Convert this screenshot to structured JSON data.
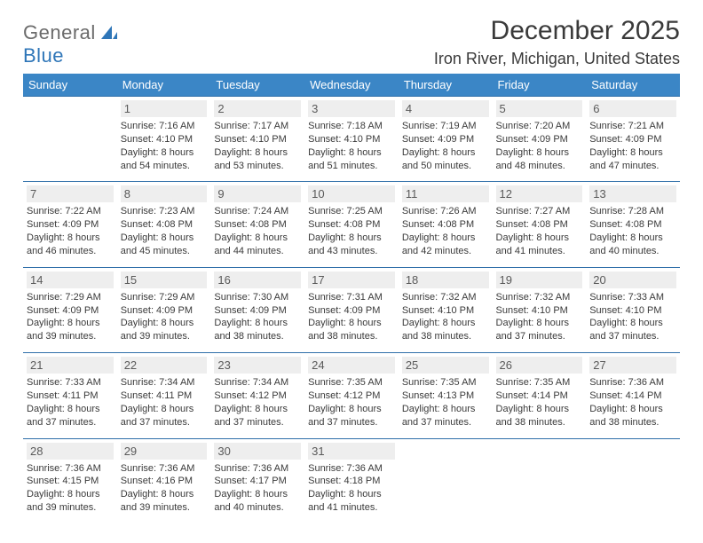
{
  "logo": {
    "part1": "General",
    "part2": "Blue"
  },
  "title": "December 2025",
  "location": "Iron River, Michigan, United States",
  "colors": {
    "header_bg": "#3b86c6",
    "header_text": "#ffffff",
    "row_border": "#2f6fa9",
    "daynum_bg": "#eeeeee",
    "text": "#3a3a3a",
    "logo_gray": "#6b6b6b",
    "logo_blue": "#2f76b8",
    "page_bg": "#ffffff"
  },
  "typography": {
    "title_fontsize": 30,
    "location_fontsize": 18,
    "header_fontsize": 13,
    "daynum_fontsize": 13,
    "body_fontsize": 11
  },
  "weekdays": [
    "Sunday",
    "Monday",
    "Tuesday",
    "Wednesday",
    "Thursday",
    "Friday",
    "Saturday"
  ],
  "layout": {
    "start_offset": 1,
    "columns": 7,
    "rows": 5
  },
  "days": [
    {
      "n": "1",
      "sunrise": "7:16 AM",
      "sunset": "4:10 PM",
      "daylight": "8 hours and 54 minutes."
    },
    {
      "n": "2",
      "sunrise": "7:17 AM",
      "sunset": "4:10 PM",
      "daylight": "8 hours and 53 minutes."
    },
    {
      "n": "3",
      "sunrise": "7:18 AM",
      "sunset": "4:10 PM",
      "daylight": "8 hours and 51 minutes."
    },
    {
      "n": "4",
      "sunrise": "7:19 AM",
      "sunset": "4:09 PM",
      "daylight": "8 hours and 50 minutes."
    },
    {
      "n": "5",
      "sunrise": "7:20 AM",
      "sunset": "4:09 PM",
      "daylight": "8 hours and 48 minutes."
    },
    {
      "n": "6",
      "sunrise": "7:21 AM",
      "sunset": "4:09 PM",
      "daylight": "8 hours and 47 minutes."
    },
    {
      "n": "7",
      "sunrise": "7:22 AM",
      "sunset": "4:09 PM",
      "daylight": "8 hours and 46 minutes."
    },
    {
      "n": "8",
      "sunrise": "7:23 AM",
      "sunset": "4:08 PM",
      "daylight": "8 hours and 45 minutes."
    },
    {
      "n": "9",
      "sunrise": "7:24 AM",
      "sunset": "4:08 PM",
      "daylight": "8 hours and 44 minutes."
    },
    {
      "n": "10",
      "sunrise": "7:25 AM",
      "sunset": "4:08 PM",
      "daylight": "8 hours and 43 minutes."
    },
    {
      "n": "11",
      "sunrise": "7:26 AM",
      "sunset": "4:08 PM",
      "daylight": "8 hours and 42 minutes."
    },
    {
      "n": "12",
      "sunrise": "7:27 AM",
      "sunset": "4:08 PM",
      "daylight": "8 hours and 41 minutes."
    },
    {
      "n": "13",
      "sunrise": "7:28 AM",
      "sunset": "4:08 PM",
      "daylight": "8 hours and 40 minutes."
    },
    {
      "n": "14",
      "sunrise": "7:29 AM",
      "sunset": "4:09 PM",
      "daylight": "8 hours and 39 minutes."
    },
    {
      "n": "15",
      "sunrise": "7:29 AM",
      "sunset": "4:09 PM",
      "daylight": "8 hours and 39 minutes."
    },
    {
      "n": "16",
      "sunrise": "7:30 AM",
      "sunset": "4:09 PM",
      "daylight": "8 hours and 38 minutes."
    },
    {
      "n": "17",
      "sunrise": "7:31 AM",
      "sunset": "4:09 PM",
      "daylight": "8 hours and 38 minutes."
    },
    {
      "n": "18",
      "sunrise": "7:32 AM",
      "sunset": "4:10 PM",
      "daylight": "8 hours and 38 minutes."
    },
    {
      "n": "19",
      "sunrise": "7:32 AM",
      "sunset": "4:10 PM",
      "daylight": "8 hours and 37 minutes."
    },
    {
      "n": "20",
      "sunrise": "7:33 AM",
      "sunset": "4:10 PM",
      "daylight": "8 hours and 37 minutes."
    },
    {
      "n": "21",
      "sunrise": "7:33 AM",
      "sunset": "4:11 PM",
      "daylight": "8 hours and 37 minutes."
    },
    {
      "n": "22",
      "sunrise": "7:34 AM",
      "sunset": "4:11 PM",
      "daylight": "8 hours and 37 minutes."
    },
    {
      "n": "23",
      "sunrise": "7:34 AM",
      "sunset": "4:12 PM",
      "daylight": "8 hours and 37 minutes."
    },
    {
      "n": "24",
      "sunrise": "7:35 AM",
      "sunset": "4:12 PM",
      "daylight": "8 hours and 37 minutes."
    },
    {
      "n": "25",
      "sunrise": "7:35 AM",
      "sunset": "4:13 PM",
      "daylight": "8 hours and 37 minutes."
    },
    {
      "n": "26",
      "sunrise": "7:35 AM",
      "sunset": "4:14 PM",
      "daylight": "8 hours and 38 minutes."
    },
    {
      "n": "27",
      "sunrise": "7:36 AM",
      "sunset": "4:14 PM",
      "daylight": "8 hours and 38 minutes."
    },
    {
      "n": "28",
      "sunrise": "7:36 AM",
      "sunset": "4:15 PM",
      "daylight": "8 hours and 39 minutes."
    },
    {
      "n": "29",
      "sunrise": "7:36 AM",
      "sunset": "4:16 PM",
      "daylight": "8 hours and 39 minutes."
    },
    {
      "n": "30",
      "sunrise": "7:36 AM",
      "sunset": "4:17 PM",
      "daylight": "8 hours and 40 minutes."
    },
    {
      "n": "31",
      "sunrise": "7:36 AM",
      "sunset": "4:18 PM",
      "daylight": "8 hours and 41 minutes."
    }
  ],
  "labels": {
    "sunrise": "Sunrise:",
    "sunset": "Sunset:",
    "daylight": "Daylight:"
  }
}
